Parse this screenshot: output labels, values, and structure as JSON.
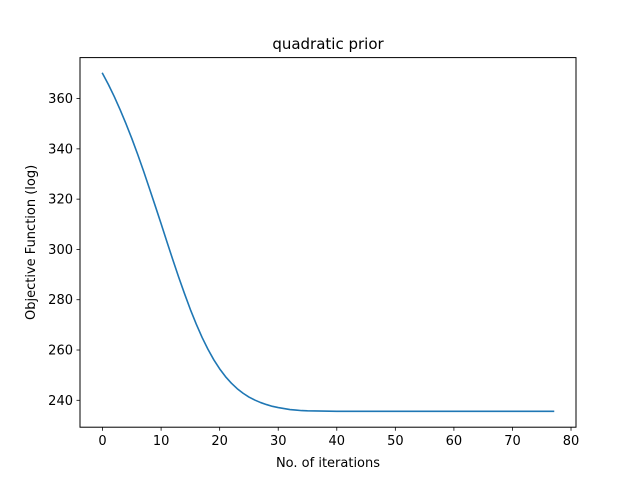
{
  "chart_data": {
    "type": "line",
    "title": "quadratic prior",
    "xlabel": "No. of iterations",
    "ylabel": "Objective Function (log)",
    "xlim": [
      -3.85,
      80.85
    ],
    "ylim": [
      229.3,
      376.3
    ],
    "xticks": [
      0,
      10,
      20,
      30,
      40,
      50,
      60,
      70,
      80
    ],
    "yticks": [
      240,
      260,
      280,
      300,
      320,
      340,
      360
    ],
    "grid": false,
    "legend": "none",
    "series": [
      {
        "color": "#1f77b4",
        "x": [
          0,
          1,
          2,
          3,
          4,
          5,
          6,
          7,
          8,
          9,
          10,
          11,
          12,
          13,
          14,
          15,
          16,
          17,
          18,
          19,
          20,
          21,
          22,
          23,
          24,
          25,
          26,
          27,
          28,
          29,
          30,
          31,
          32,
          33,
          34,
          35,
          40,
          45,
          50,
          55,
          60,
          65,
          70,
          75,
          77
        ],
        "y": [
          370,
          365.6,
          360.8,
          355.6,
          350.0,
          344.1,
          337.8,
          331.2,
          324.3,
          317.3,
          310.2,
          303.0,
          295.9,
          289.0,
          282.4,
          276.1,
          270.3,
          265.0,
          260.3,
          256.1,
          252.5,
          249.4,
          246.8,
          244.6,
          242.8,
          241.3,
          240.1,
          239.1,
          238.3,
          237.6,
          237.1,
          236.7,
          236.3,
          236.1,
          235.9,
          235.8,
          235.6,
          235.6,
          235.6,
          235.6,
          235.6,
          235.6,
          235.6,
          235.6,
          235.6
        ]
      }
    ]
  }
}
